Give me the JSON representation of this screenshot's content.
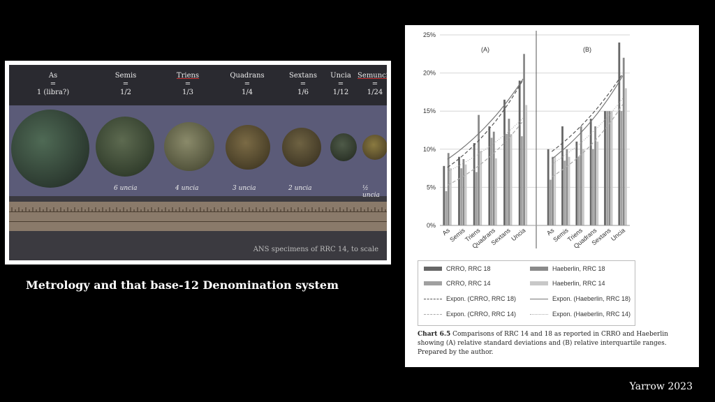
{
  "photo": {
    "denominations": [
      {
        "name": "As",
        "eq": "=",
        "value": "1 (libra?)"
      },
      {
        "name": "Semis",
        "eq": "=",
        "value": "1/2"
      },
      {
        "name": "Triens",
        "eq": "=",
        "value": "1/3"
      },
      {
        "name": "Quadrans",
        "eq": "=",
        "value": "1/4"
      },
      {
        "name": "Sextans",
        "eq": "=",
        "value": "1/6"
      },
      {
        "name": "Uncia",
        "eq": "=",
        "value": "1/12"
      },
      {
        "name": "Semuncia",
        "eq": "=",
        "value": "1/24"
      }
    ],
    "coin_labels": [
      "6 uncia",
      "4 uncia",
      "3 uncia",
      "2 uncia",
      "½ uncia"
    ],
    "caption": "ANS specimens of RRC 14, to scale"
  },
  "slide_caption": "Metrology and that base-12 Denomination system",
  "author": "Yarrow 2023",
  "chart_note": {
    "label": "Chart 6.5",
    "text": "Comparisons of RRC 14 and 18 as reported in CRRO and Haeberlin showing (A) relative standard deviations and (B) relative interquartile ranges. Prepared by the author."
  },
  "chart_data": {
    "type": "bar",
    "categories": [
      "As",
      "Semis",
      "Triens",
      "Quadrans",
      "Sextans",
      "Uncia"
    ],
    "ylim": [
      0,
      25
    ],
    "yticks": [
      "0%",
      "5%",
      "10%",
      "15%",
      "20%",
      "25%"
    ],
    "grid": true,
    "panels": [
      {
        "label": "(A)",
        "series": [
          {
            "name": "CRRO, RRC 18",
            "values": [
              7.8,
              9.0,
              10.8,
              13.0,
              16.5,
              19.0
            ]
          },
          {
            "name": "CRRO, RRC 14",
            "values": [
              4.5,
              7.5,
              7.0,
              11.5,
              12.0,
              11.7
            ]
          },
          {
            "name": "Haeberlin, RRC 18",
            "values": [
              9.5,
              8.7,
              14.5,
              12.3,
              14.0,
              22.5
            ]
          },
          {
            "name": "Haeberlin, RRC 14",
            "values": [
              7.5,
              8.0,
              9.8,
              8.8,
              12.0,
              15.8
            ]
          }
        ]
      },
      {
        "label": "(B)",
        "series": [
          {
            "name": "CRRO, RRC 18",
            "values": [
              10.0,
              13.0,
              11.0,
              14.0,
              15.0,
              24.0
            ]
          },
          {
            "name": "CRRO, RRC 14",
            "values": [
              6.0,
              8.5,
              9.0,
              10.0,
              15.0,
              15.0
            ]
          },
          {
            "name": "Haeberlin, RRC 18",
            "values": [
              9.0,
              10.0,
              13.0,
              13.0,
              15.0,
              22.0
            ]
          },
          {
            "name": "Haeberlin, RRC 14",
            "values": [
              9.0,
              9.0,
              10.0,
              11.0,
              15.0,
              18.0
            ]
          }
        ]
      }
    ],
    "colors": {
      "CRRO, RRC 18": "#666666",
      "CRRO, RRC 14": "#a0a0a0",
      "Haeberlin, RRC 18": "#8a8a8a",
      "Haeberlin, RRC 14": "#c8c8c8"
    },
    "legend": [
      "CRRO, RRC 18",
      "Haeberlin, RRC 18",
      "CRRO, RRC 14",
      "Haeberlin, RRC 14",
      "Expon. (CRRO, RRC 18)",
      "Expon. (Haeberlin, RRC 18)",
      "Expon. (CRRO, RRC 14)",
      "Expon. (Haeberlin, RRC 14)"
    ]
  }
}
